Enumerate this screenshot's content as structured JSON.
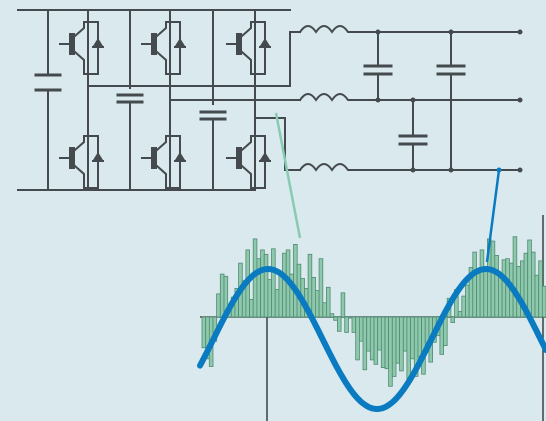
{
  "colors": {
    "background": "#dae9ee",
    "circuit": "#444a4d",
    "pwm_fill": "#8fc9ad",
    "pwm_stroke": "#4f8a70",
    "sine": "#0a7bc1",
    "leader_pwm": "#88cbb0",
    "leader_sine": "#0a7bc1"
  },
  "diagram": {
    "type": "three-phase-inverter-with-lc-filter",
    "components": {
      "dc_link_capacitor": 1,
      "igbt_switches": 6,
      "interphase_capacitors": 2,
      "filter_inductors": 3,
      "filter_capacitors": 3,
      "outputs": 3
    }
  },
  "waveforms": {
    "pwm_levels": [
      -0.28,
      -0.38,
      -0.45,
      -0.22,
      0.21,
      0.39,
      0.37,
      0.08,
      0.18,
      0.26,
      0.49,
      0.33,
      0.61,
      0.16,
      0.71,
      0.53,
      0.61,
      0.57,
      0.34,
      0.62,
      0.25,
      0.39,
      0.58,
      0.61,
      0.39,
      0.66,
      0.48,
      0.35,
      0.26,
      0.57,
      0.36,
      0.24,
      0.53,
      0.13,
      0.27,
      0.03,
      -0.03,
      -0.13,
      0.22,
      -0.14,
      -0.01,
      -0.14,
      -0.39,
      -0.22,
      -0.48,
      -0.31,
      -0.39,
      -0.43,
      -0.3,
      -0.46,
      -0.47,
      -0.63,
      -0.54,
      -0.42,
      -0.49,
      -0.31,
      -0.59,
      -0.38,
      -0.54,
      -0.36,
      -0.52,
      -0.23,
      -0.41,
      -0.23,
      -0.17,
      -0.34,
      -0.26,
      0.17,
      -0.05,
      0.25,
      0.05,
      0.19,
      0.29,
      0.45,
      0.59,
      0.42,
      0.61,
      0.42,
      0.71,
      0.69,
      0.56,
      0.4,
      0.52,
      0.53,
      0.49,
      0.73,
      0.46,
      0.51,
      0.58,
      0.7,
      0.59,
      0.38,
      0.51,
      0.28
    ],
    "sine": {
      "cycles": 1.3,
      "amplitude": 1
    }
  }
}
